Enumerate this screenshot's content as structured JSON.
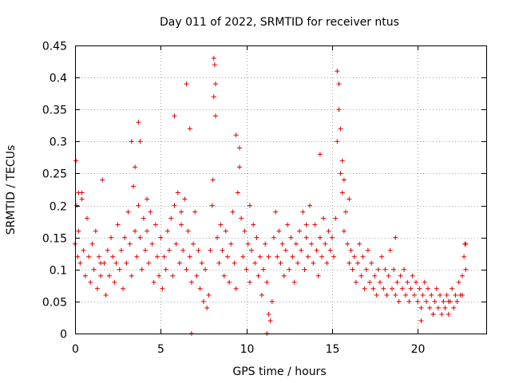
{
  "chart_data": {
    "type": "scatter",
    "title": "Day 011 of 2022, SRMTID for receiver ntus",
    "xlabel": "GPS time / hours",
    "ylabel": "SRMTID / TECUs",
    "xlim": [
      0,
      24
    ],
    "ylim": [
      0,
      0.45
    ],
    "xticks": [
      0,
      5,
      10,
      15,
      20
    ],
    "yticks": [
      0,
      0.05,
      0.1,
      0.15,
      0.2,
      0.25,
      0.3,
      0.35,
      0.4,
      0.45
    ],
    "xtick_labels": [
      "0",
      "5",
      "10",
      "15",
      "20"
    ],
    "ytick_labels": [
      "0",
      "0.05",
      "0.1",
      "0.15",
      "0.2",
      "0.25",
      "0.3",
      "0.35",
      "0.4",
      "0.45"
    ],
    "grid": true,
    "marker": "+",
    "marker_color": "#e00000",
    "series": [
      {
        "name": "SRMTID",
        "x": [
          0.0,
          0.05,
          0.1,
          0.15,
          0.2,
          0.3,
          0.4,
          0.5,
          0.6,
          0.7,
          0.8,
          0.9,
          1.0,
          1.1,
          1.2,
          1.3,
          1.4,
          1.5,
          1.6,
          1.7,
          1.8,
          1.9,
          2.0,
          2.1,
          2.2,
          2.3,
          2.4,
          2.5,
          2.6,
          2.7,
          2.8,
          2.9,
          3.0,
          3.1,
          3.2,
          3.3,
          3.4,
          3.5,
          3.6,
          3.7,
          3.8,
          3.9,
          4.0,
          4.1,
          4.2,
          4.3,
          4.4,
          4.5,
          4.6,
          4.7,
          4.8,
          4.9,
          5.0,
          5.1,
          5.2,
          5.3,
          5.4,
          5.5,
          5.6,
          5.7,
          5.8,
          5.9,
          6.0,
          6.1,
          6.2,
          6.3,
          6.4,
          6.5,
          6.6,
          6.7,
          6.8,
          6.9,
          7.0,
          7.1,
          7.2,
          7.3,
          7.4,
          7.5,
          7.6,
          7.7,
          7.8,
          7.9,
          8.0,
          8.05,
          8.1,
          8.15,
          8.2,
          8.3,
          8.4,
          8.5,
          8.6,
          8.7,
          8.8,
          8.9,
          9.0,
          9.1,
          9.2,
          9.3,
          9.4,
          9.5,
          9.6,
          9.7,
          9.8,
          9.9,
          10.0,
          10.1,
          10.2,
          10.3,
          10.4,
          10.5,
          10.6,
          10.7,
          10.8,
          10.9,
          11.0,
          11.1,
          11.2,
          11.3,
          11.4,
          11.5,
          11.6,
          11.7,
          11.8,
          11.9,
          12.0,
          12.1,
          12.2,
          12.3,
          12.4,
          12.5,
          12.6,
          12.7,
          12.8,
          12.9,
          13.0,
          13.1,
          13.2,
          13.3,
          13.4,
          13.5,
          13.6,
          13.7,
          13.8,
          13.9,
          14.0,
          14.1,
          14.2,
          14.3,
          14.4,
          14.5,
          14.6,
          14.7,
          14.8,
          14.9,
          15.0,
          15.1,
          15.2,
          15.3,
          15.4,
          15.5,
          15.6,
          15.7,
          15.8,
          15.9,
          16.0,
          16.1,
          16.2,
          16.3,
          16.4,
          16.5,
          16.6,
          16.7,
          16.8,
          16.9,
          17.0,
          17.1,
          17.2,
          17.3,
          17.4,
          17.5,
          17.6,
          17.7,
          17.8,
          17.9,
          18.0,
          18.1,
          18.2,
          18.3,
          18.4,
          18.5,
          18.6,
          18.7,
          18.8,
          18.9,
          19.0,
          19.1,
          19.2,
          19.3,
          19.4,
          19.5,
          19.6,
          19.7,
          19.8,
          19.9,
          20.0,
          20.1,
          20.2,
          20.3,
          20.4,
          20.5,
          20.6,
          20.7,
          20.8,
          20.9,
          21.0,
          21.1,
          21.2,
          21.3,
          21.4,
          21.5,
          21.6,
          21.7,
          21.8,
          21.9,
          22.0,
          22.1,
          22.2,
          22.3,
          22.4,
          22.5,
          22.6,
          22.7,
          22.75,
          22.8,
          0.2,
          0.4,
          1.5,
          3.3,
          3.5,
          3.7,
          3.8,
          4.2,
          5.8,
          6.2,
          6.5,
          6.7,
          6.8,
          8.1,
          8.2,
          9.4,
          9.6,
          10.2,
          11.2,
          11.3,
          13.5,
          14.3,
          15.3,
          15.4,
          15.5,
          15.6,
          15.7,
          16.0,
          18.7,
          20.2,
          20.9,
          21.8,
          22.6,
          22.8
        ],
        "y": [
          0.14,
          0.27,
          0.2,
          0.12,
          0.16,
          0.11,
          0.22,
          0.13,
          0.09,
          0.18,
          0.12,
          0.08,
          0.14,
          0.1,
          0.16,
          0.07,
          0.12,
          0.09,
          0.24,
          0.11,
          0.06,
          0.13,
          0.09,
          0.15,
          0.12,
          0.08,
          0.11,
          0.17,
          0.1,
          0.13,
          0.07,
          0.15,
          0.11,
          0.19,
          0.14,
          0.09,
          0.23,
          0.16,
          0.12,
          0.2,
          0.15,
          0.1,
          0.18,
          0.13,
          0.16,
          0.11,
          0.19,
          0.14,
          0.08,
          0.17,
          0.12,
          0.09,
          0.15,
          0.07,
          0.12,
          0.1,
          0.16,
          0.13,
          0.18,
          0.09,
          0.2,
          0.14,
          0.22,
          0.11,
          0.17,
          0.13,
          0.21,
          0.1,
          0.16,
          0.12,
          0.08,
          0.14,
          0.19,
          0.09,
          0.13,
          0.07,
          0.11,
          0.05,
          0.1,
          0.04,
          0.06,
          0.13,
          0.2,
          0.24,
          0.37,
          0.42,
          0.39,
          0.15,
          0.11,
          0.17,
          0.13,
          0.09,
          0.16,
          0.12,
          0.08,
          0.14,
          0.19,
          0.11,
          0.07,
          0.22,
          0.29,
          0.18,
          0.12,
          0.16,
          0.1,
          0.14,
          0.08,
          0.13,
          0.17,
          0.11,
          0.15,
          0.09,
          0.12,
          0.06,
          0.1,
          0.14,
          0.08,
          0.12,
          0.02,
          0.05,
          0.15,
          0.19,
          0.12,
          0.16,
          0.11,
          0.14,
          0.09,
          0.13,
          0.17,
          0.1,
          0.15,
          0.12,
          0.08,
          0.14,
          0.11,
          0.16,
          0.13,
          0.19,
          0.1,
          0.15,
          0.12,
          0.2,
          0.14,
          0.11,
          0.17,
          0.13,
          0.09,
          0.15,
          0.12,
          0.18,
          0.14,
          0.11,
          0.16,
          0.13,
          0.15,
          0.12,
          0.18,
          0.3,
          0.39,
          0.25,
          0.22,
          0.16,
          0.19,
          0.14,
          0.11,
          0.13,
          0.1,
          0.12,
          0.08,
          0.11,
          0.14,
          0.09,
          0.12,
          0.07,
          0.1,
          0.13,
          0.08,
          0.11,
          0.07,
          0.09,
          0.06,
          0.1,
          0.08,
          0.12,
          0.07,
          0.1,
          0.06,
          0.09,
          0.13,
          0.07,
          0.1,
          0.06,
          0.08,
          0.05,
          0.09,
          0.07,
          0.1,
          0.06,
          0.08,
          0.05,
          0.07,
          0.09,
          0.06,
          0.08,
          0.05,
          0.07,
          0.04,
          0.06,
          0.08,
          0.05,
          0.07,
          0.04,
          0.06,
          0.03,
          0.05,
          0.07,
          0.04,
          0.06,
          0.03,
          0.05,
          0.04,
          0.06,
          0.03,
          0.05,
          0.07,
          0.04,
          0.06,
          0.05,
          0.08,
          0.06,
          0.09,
          0.12,
          0.14,
          0.1,
          0.22,
          0.21,
          0.11,
          0.3,
          0.26,
          0.33,
          0.3,
          0.21,
          0.34,
          0.19,
          0.39,
          0.32,
          0.0,
          0.43,
          0.34,
          0.31,
          0.26,
          0.2,
          0.0,
          0.03,
          0.17,
          0.28,
          0.41,
          0.35,
          0.32,
          0.27,
          0.24,
          0.21,
          0.15,
          0.02,
          0.03,
          0.05,
          0.06,
          0.14
        ]
      }
    ]
  }
}
